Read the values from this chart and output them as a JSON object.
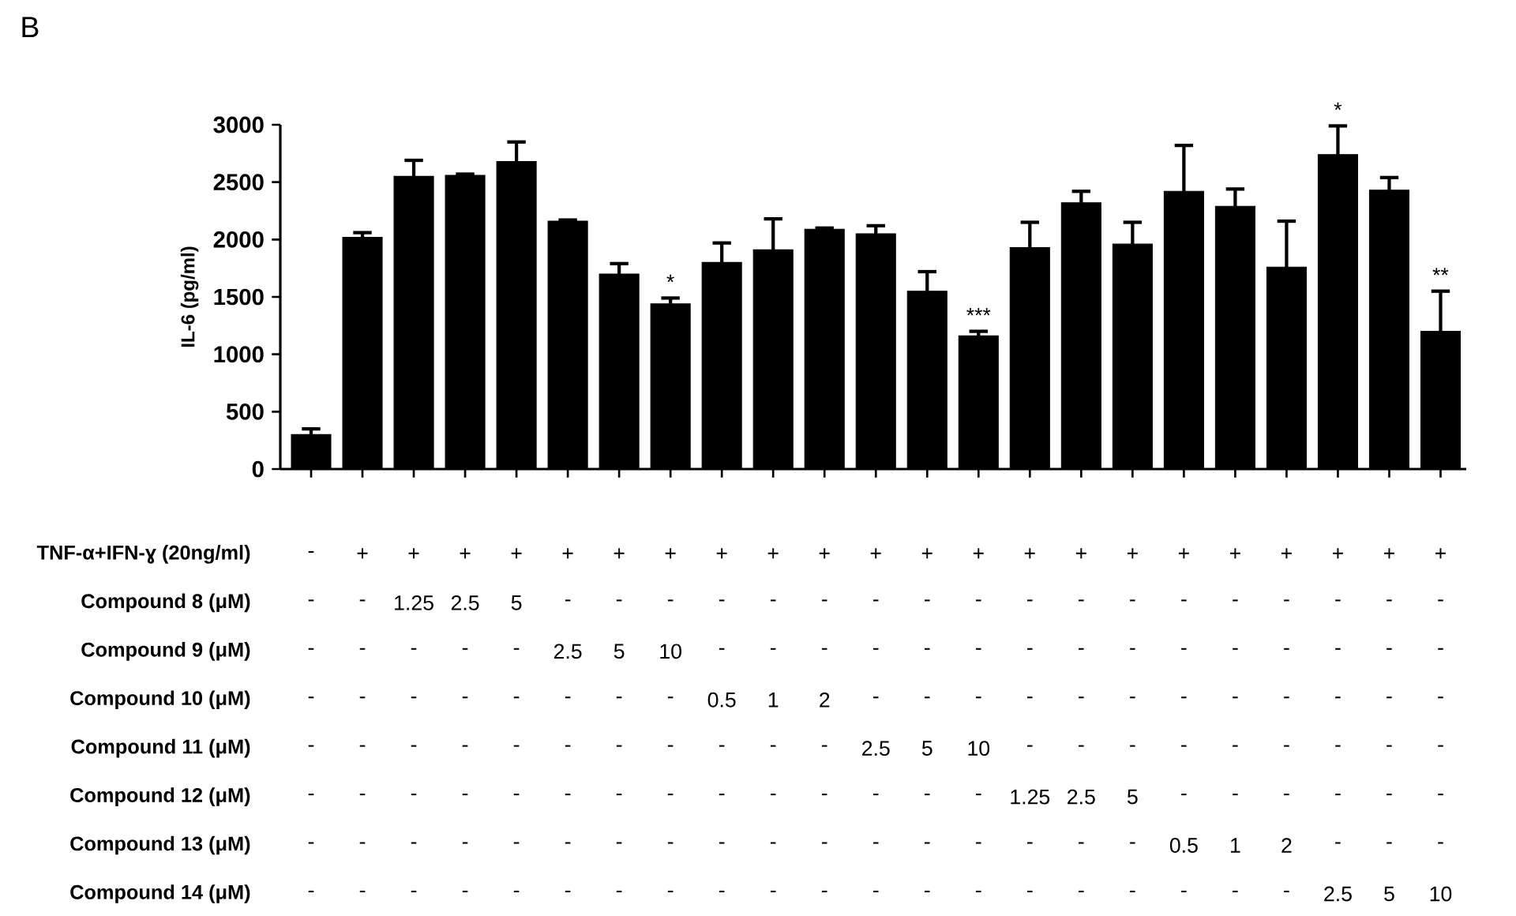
{
  "chart_data": {
    "type": "bar",
    "title": "B",
    "ylabel": "IL-6 (pg/ml)",
    "categories": [
      null,
      null,
      null,
      null,
      null,
      null,
      null,
      null,
      null,
      null,
      null,
      null,
      null,
      null,
      null,
      null,
      null,
      null,
      null,
      null,
      null,
      null,
      null
    ],
    "values": [
      300,
      2020,
      2550,
      2560,
      2680,
      2160,
      1700,
      1440,
      1800,
      1910,
      2090,
      2050,
      1550,
      1160,
      1930,
      2320,
      1960,
      2420,
      2290,
      1760,
      2740,
      2430,
      1200
    ],
    "errors": [
      [
        300,
        350
      ],
      [
        2020,
        2060
      ],
      [
        2550,
        2690
      ],
      [
        2560,
        2570
      ],
      [
        2680,
        2850
      ],
      [
        2160,
        2170
      ],
      [
        1700,
        1790
      ],
      [
        1440,
        1490
      ],
      [
        1800,
        1970
      ],
      [
        1910,
        2180
      ],
      [
        2090,
        2100
      ],
      [
        2050,
        2120
      ],
      [
        1550,
        1720
      ],
      [
        1160,
        1200
      ],
      [
        1930,
        2150
      ],
      [
        2320,
        2420
      ],
      [
        1960,
        2150
      ],
      [
        2420,
        2820
      ],
      [
        2290,
        2440
      ],
      [
        1760,
        2160
      ],
      [
        2740,
        2990
      ],
      [
        2430,
        2540
      ],
      [
        1200,
        1550
      ]
    ],
    "value_labels": [
      null,
      null,
      null,
      null,
      null,
      null,
      null,
      "*",
      null,
      null,
      null,
      null,
      null,
      "***",
      null,
      null,
      null,
      null,
      null,
      null,
      "*",
      null,
      "**"
    ],
    "color": "#000000",
    "ylim": [
      0,
      3000
    ],
    "yticks": [
      0,
      500,
      1000,
      1500,
      2000,
      2500,
      3000
    ],
    "annotations": [
      "TNF-α+IFN-ɣ (20ng/ml)",
      "-",
      "+",
      "+",
      "+",
      "+",
      "+",
      "+",
      "+",
      "+",
      "+",
      "+",
      "+",
      "+",
      "+",
      "+",
      "+",
      "+",
      "+",
      "+",
      "+",
      "+",
      "+",
      "+",
      "Compound 8 (μM)",
      "-",
      "-",
      "1.25",
      "2.5",
      "5",
      "-",
      "-",
      "-",
      "-",
      "-",
      "-",
      "-",
      "-",
      "-",
      "-",
      "-",
      "-",
      "-",
      "-",
      "-",
      "-",
      "-",
      "-",
      "Compound 9 (μM)",
      "-",
      "-",
      "-",
      "-",
      "-",
      "2.5",
      "5",
      "10",
      "-",
      "-",
      "-",
      "-",
      "-",
      "-",
      "-",
      "-",
      "-",
      "-",
      "-",
      "-",
      "-",
      "-",
      "-",
      "Compound 10 (μM)",
      "-",
      "-",
      "-",
      "-",
      "-",
      "-",
      "-",
      "-",
      "0.5",
      "1",
      "2",
      "-",
      "-",
      "-",
      "-",
      "-",
      "-",
      "-",
      "-",
      "-",
      "-",
      "-",
      "-",
      "Compound 11 (μM)",
      "-",
      "-",
      "-",
      "-",
      "-",
      "-",
      "-",
      "-",
      "-",
      "-",
      "-",
      "2.5",
      "5",
      "10",
      "-",
      "-",
      "-",
      "-",
      "-",
      "-",
      "-",
      "-",
      "-",
      "Compound 12 (μM)",
      "-",
      "-",
      "-",
      "-",
      "-",
      "-",
      "-",
      "-",
      "-",
      "-",
      "-",
      "-",
      "-",
      "-",
      "1.25",
      "2.5",
      "5",
      "-",
      "-",
      "-",
      "-",
      "-",
      "-",
      "Compound 13 (μM)",
      "-",
      "-",
      "-",
      "-",
      "-",
      "-",
      "-",
      "-",
      "-",
      "-",
      "-",
      "-",
      "-",
      "-",
      "-",
      "-",
      "-",
      "0.5",
      "1",
      "2",
      "-",
      "-",
      "-",
      "Compound 14 (μM)",
      "-",
      "-",
      "-",
      "-",
      "-",
      "-",
      "-",
      "-",
      "-",
      "-",
      "-",
      "-",
      "-",
      "-",
      "-",
      "-",
      "-",
      "-",
      "-",
      "-",
      "2.5",
      "5",
      "10"
    ]
  }
}
